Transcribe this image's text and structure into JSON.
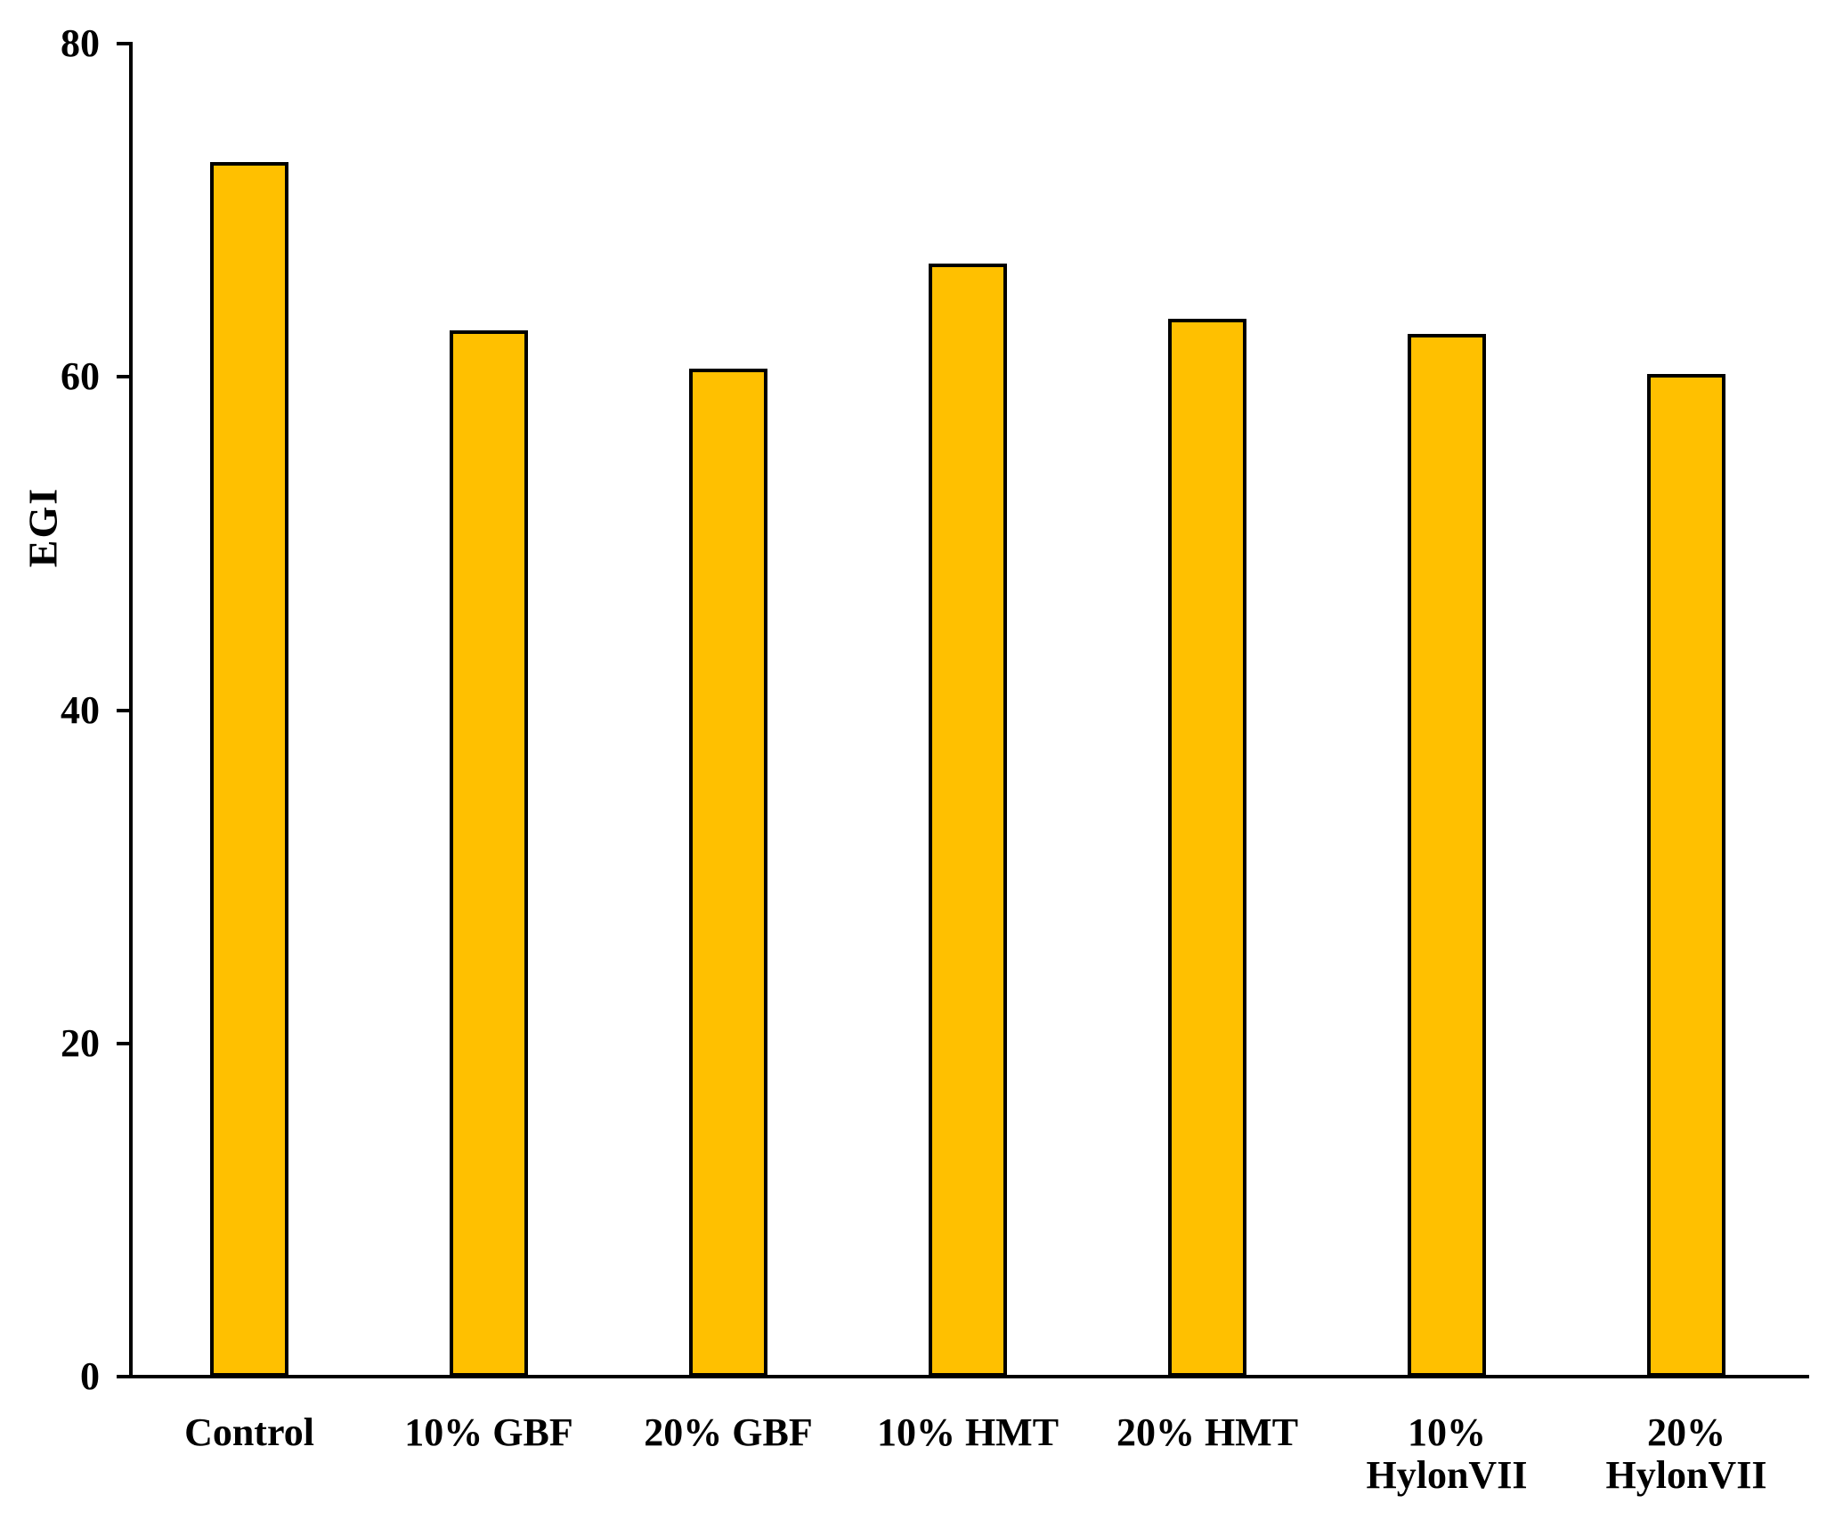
{
  "chart_data": {
    "type": "bar",
    "title": "",
    "xlabel": "",
    "ylabel": "EGI",
    "categories": [
      "Control",
      "10% GBF",
      "20% GBF",
      "10% HMT",
      "20% HMT",
      "10%\nHylonVII",
      "20%\nHylonVII"
    ],
    "values": [
      72.9,
      62.8,
      60.5,
      66.8,
      63.5,
      62.6,
      60.2
    ],
    "ylim": [
      0,
      80
    ],
    "yticks": [
      0,
      20,
      40,
      60,
      80
    ],
    "grid": false,
    "legend": false,
    "bar_color": "#FFC000",
    "bar_border_color": "#000000",
    "axis_color": "#000000",
    "text_color": "#000000",
    "background": "#FFFFFF"
  }
}
